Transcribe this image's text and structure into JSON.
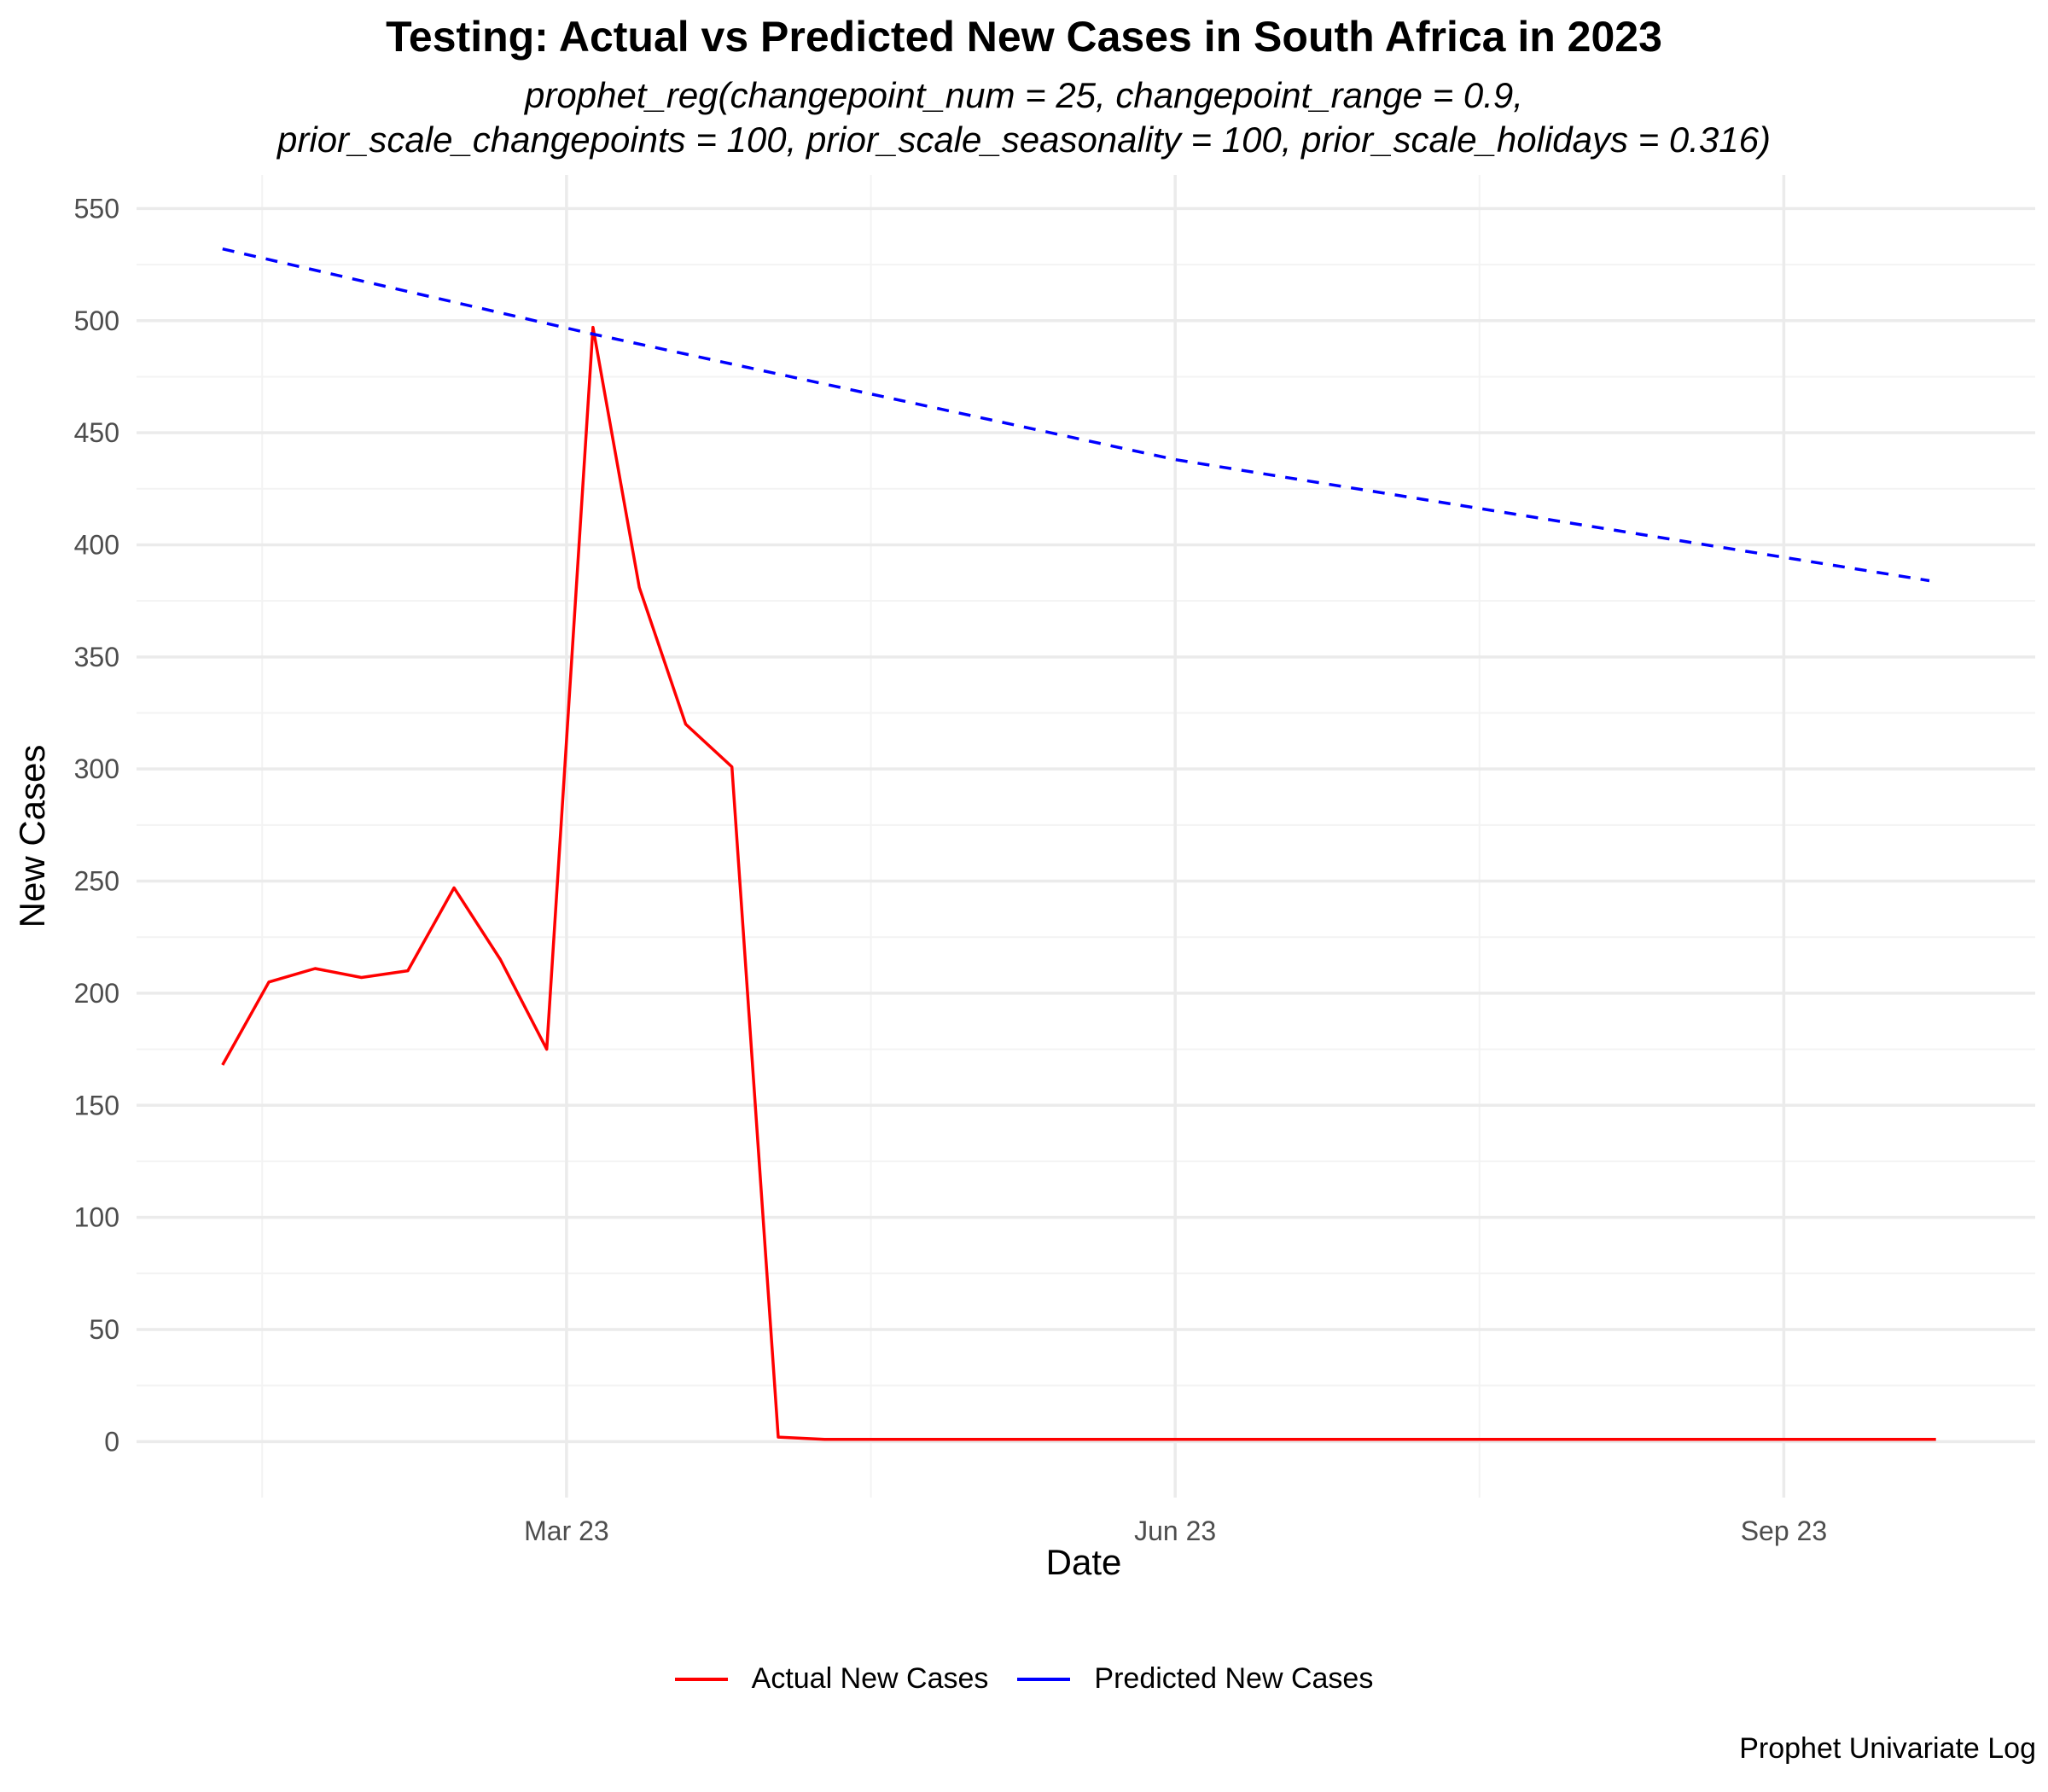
{
  "title": "Testing: Actual vs Predicted New Cases in South Africa in 2023",
  "subtitle": [
    "prophet_reg(changepoint_num = 25, changepoint_range = 0.9,",
    "prior_scale_changepoints = 100, prior_scale_seasonality = 100, prior_scale_holidays = 0.316)"
  ],
  "caption": "Prophet Univariate Log",
  "legend": [
    {
      "label": "Actual New Cases",
      "color": "#ff0000"
    },
    {
      "label": "Predicted New Cases",
      "color": "#0000ff"
    }
  ],
  "chart_data": {
    "type": "line",
    "xlabel": "Date",
    "ylabel": "New Cases",
    "xlim": [
      "2022-12-26",
      "2023-10-09"
    ],
    "ylim": [
      -25,
      565
    ],
    "x_ticks": [
      {
        "date": "2023-03-01",
        "label": "Mar 23"
      },
      {
        "date": "2023-06-01",
        "label": "Jun 23"
      },
      {
        "date": "2023-09-01",
        "label": "Sep 23"
      }
    ],
    "y_ticks": [
      0,
      50,
      100,
      150,
      200,
      250,
      300,
      350,
      400,
      450,
      500,
      550
    ],
    "grid": true,
    "legend_position": "bottom",
    "series": [
      {
        "name": "Actual New Cases",
        "color": "#ff0000",
        "dash": "solid",
        "points": [
          {
            "x": "2023-01-08",
            "y": 168
          },
          {
            "x": "2023-01-15",
            "y": 205
          },
          {
            "x": "2023-01-22",
            "y": 211
          },
          {
            "x": "2023-01-29",
            "y": 207
          },
          {
            "x": "2023-02-05",
            "y": 210
          },
          {
            "x": "2023-02-12",
            "y": 247
          },
          {
            "x": "2023-02-19",
            "y": 215
          },
          {
            "x": "2023-02-26",
            "y": 175
          },
          {
            "x": "2023-03-05",
            "y": 497
          },
          {
            "x": "2023-03-12",
            "y": 381
          },
          {
            "x": "2023-03-19",
            "y": 320
          },
          {
            "x": "2023-03-26",
            "y": 301
          },
          {
            "x": "2023-04-02",
            "y": 2
          },
          {
            "x": "2023-04-09",
            "y": 1
          },
          {
            "x": "2023-04-16",
            "y": 1
          },
          {
            "x": "2023-04-23",
            "y": 1
          },
          {
            "x": "2023-04-30",
            "y": 1
          },
          {
            "x": "2023-05-07",
            "y": 1
          },
          {
            "x": "2023-05-14",
            "y": 1
          },
          {
            "x": "2023-05-21",
            "y": 1
          },
          {
            "x": "2023-05-28",
            "y": 1
          },
          {
            "x": "2023-06-04",
            "y": 1
          },
          {
            "x": "2023-06-11",
            "y": 1
          },
          {
            "x": "2023-06-18",
            "y": 1
          },
          {
            "x": "2023-06-25",
            "y": 1
          },
          {
            "x": "2023-07-02",
            "y": 1
          },
          {
            "x": "2023-07-09",
            "y": 1
          },
          {
            "x": "2023-07-16",
            "y": 1
          },
          {
            "x": "2023-07-23",
            "y": 1
          },
          {
            "x": "2023-07-30",
            "y": 1
          },
          {
            "x": "2023-08-06",
            "y": 1
          },
          {
            "x": "2023-08-13",
            "y": 1
          },
          {
            "x": "2023-08-20",
            "y": 1
          },
          {
            "x": "2023-08-27",
            "y": 1
          },
          {
            "x": "2023-09-03",
            "y": 1
          },
          {
            "x": "2023-09-10",
            "y": 1
          },
          {
            "x": "2023-09-17",
            "y": 1
          },
          {
            "x": "2023-09-24",
            "y": 1
          }
        ]
      },
      {
        "name": "Predicted New Cases",
        "color": "#0000ff",
        "dash": "dashed",
        "points": [
          {
            "x": "2023-01-08",
            "y": 532
          },
          {
            "x": "2023-03-05",
            "y": 494
          },
          {
            "x": "2023-06-01",
            "y": 438
          },
          {
            "x": "2023-09-23",
            "y": 384
          }
        ]
      }
    ]
  }
}
